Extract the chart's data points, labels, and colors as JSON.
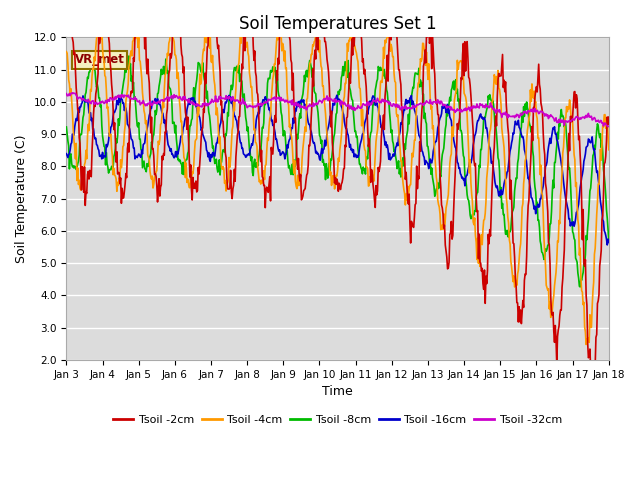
{
  "title": "Soil Temperatures Set 1",
  "xlabel": "Time",
  "ylabel": "Soil Temperature (C)",
  "ylim": [
    2.0,
    12.0
  ],
  "yticks": [
    2.0,
    3.0,
    4.0,
    5.0,
    6.0,
    7.0,
    8.0,
    9.0,
    10.0,
    11.0,
    12.0
  ],
  "bg_color": "#dcdcdc",
  "fig_bg": "#ffffff",
  "legend_label": "VR_met",
  "series_colors": {
    "2cm": "#cc0000",
    "4cm": "#ff9900",
    "8cm": "#00bb00",
    "16cm": "#0000cc",
    "32cm": "#cc00cc"
  },
  "legend_entries": [
    {
      "label": "Tsoil -2cm",
      "color": "#cc0000"
    },
    {
      "label": "Tsoil -4cm",
      "color": "#ff9900"
    },
    {
      "label": "Tsoil -8cm",
      "color": "#00bb00"
    },
    {
      "label": "Tsoil -16cm",
      "color": "#0000cc"
    },
    {
      "label": "Tsoil -32cm",
      "color": "#cc00cc"
    }
  ],
  "xtick_labels": [
    "Jan 3",
    "Jan 4",
    "Jan 5",
    "Jan 6",
    "Jan 7",
    "Jan 8",
    "Jan 9",
    "Jan 10",
    "Jan 11",
    "Jan 12",
    "Jan 13",
    "Jan 14",
    "Jan 15",
    "Jan 16",
    "Jan 17",
    "Jan 18"
  ],
  "n_points": 721,
  "days": 15,
  "grid_color": "#ffffff",
  "tick_fontsize": 7.5,
  "title_fontsize": 12,
  "axis_label_fontsize": 9
}
